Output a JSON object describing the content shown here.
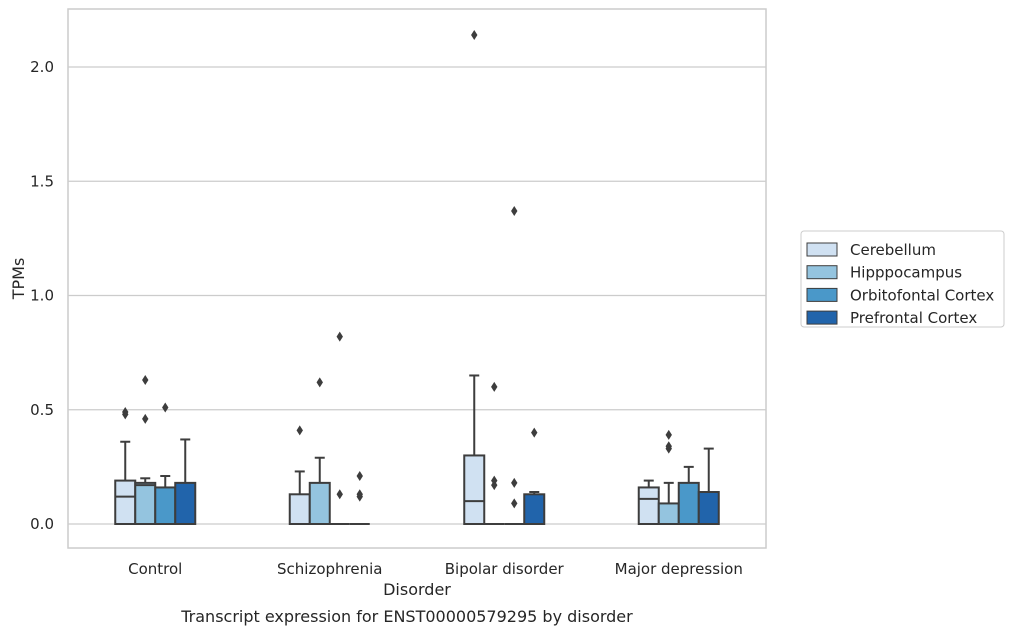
{
  "chart_data": {
    "type": "box",
    "caption": "Transcript expression for ENST00000579295 by disorder",
    "xlabel": "Disorder",
    "ylabel": "TPMs",
    "ylim": [
      -0.1,
      2.25
    ],
    "yticks": [
      "0.0",
      "0.5",
      "1.0",
      "1.5",
      "2.0"
    ],
    "categories": [
      "Control",
      "Schizophrenia",
      "Bipolar disorder",
      "Major depression"
    ],
    "grid": "horizontal",
    "legend_position": "right",
    "series": [
      {
        "name": "Cerebellum",
        "color": "#d0e1f2",
        "boxes": [
          {
            "whislo": 0.0,
            "q1": 0.0,
            "med": 0.12,
            "q3": 0.19,
            "whishi": 0.36,
            "fliers": [
              0.48,
              0.49
            ]
          },
          {
            "whislo": 0.0,
            "q1": 0.0,
            "med": 0.0,
            "q3": 0.13,
            "whishi": 0.23,
            "fliers": [
              0.41
            ]
          },
          {
            "whislo": 0.0,
            "q1": 0.0,
            "med": 0.1,
            "q3": 0.3,
            "whishi": 0.65,
            "fliers": [
              2.14
            ]
          },
          {
            "whislo": 0.0,
            "q1": 0.0,
            "med": 0.11,
            "q3": 0.16,
            "whishi": 0.19,
            "fliers": []
          }
        ]
      },
      {
        "name": "Hipppocampus",
        "color": "#94c4df",
        "boxes": [
          {
            "whislo": 0.0,
            "q1": 0.0,
            "med": 0.17,
            "q3": 0.18,
            "whishi": 0.2,
            "fliers": [
              0.46,
              0.63
            ]
          },
          {
            "whislo": 0.0,
            "q1": 0.0,
            "med": 0.0,
            "q3": 0.18,
            "whishi": 0.29,
            "fliers": [
              0.62
            ]
          },
          {
            "whislo": 0.0,
            "q1": 0.0,
            "med": 0.0,
            "q3": 0.0,
            "whishi": 0.0,
            "fliers": [
              0.17,
              0.19,
              0.6
            ]
          },
          {
            "whislo": 0.0,
            "q1": 0.0,
            "med": 0.0,
            "q3": 0.09,
            "whishi": 0.18,
            "fliers": [
              0.33,
              0.34,
              0.39
            ]
          }
        ]
      },
      {
        "name": "Orbitofontal Cortex",
        "color": "#4a98c9",
        "boxes": [
          {
            "whislo": 0.0,
            "q1": 0.0,
            "med": 0.0,
            "q3": 0.16,
            "whishi": 0.21,
            "fliers": [
              0.51
            ]
          },
          {
            "whislo": 0.0,
            "q1": 0.0,
            "med": 0.0,
            "q3": 0.0,
            "whishi": 0.0,
            "fliers": [
              0.13,
              0.82
            ]
          },
          {
            "whislo": 0.0,
            "q1": 0.0,
            "med": 0.0,
            "q3": 0.0,
            "whishi": 0.0,
            "fliers": [
              0.09,
              0.18,
              1.37
            ]
          },
          {
            "whislo": 0.0,
            "q1": 0.0,
            "med": 0.0,
            "q3": 0.18,
            "whishi": 0.25,
            "fliers": []
          }
        ]
      },
      {
        "name": "Prefrontal Cortex",
        "color": "#2164ab",
        "boxes": [
          {
            "whislo": 0.0,
            "q1": 0.0,
            "med": 0.0,
            "q3": 0.18,
            "whishi": 0.37,
            "fliers": []
          },
          {
            "whislo": 0.0,
            "q1": 0.0,
            "med": 0.0,
            "q3": 0.0,
            "whishi": 0.0,
            "fliers": [
              0.12,
              0.13,
              0.21
            ]
          },
          {
            "whislo": 0.0,
            "q1": 0.0,
            "med": 0.0,
            "q3": 0.13,
            "whishi": 0.14,
            "fliers": [
              0.4
            ]
          },
          {
            "whislo": 0.0,
            "q1": 0.0,
            "med": 0.0,
            "q3": 0.14,
            "whishi": 0.33,
            "fliers": []
          }
        ]
      }
    ]
  }
}
